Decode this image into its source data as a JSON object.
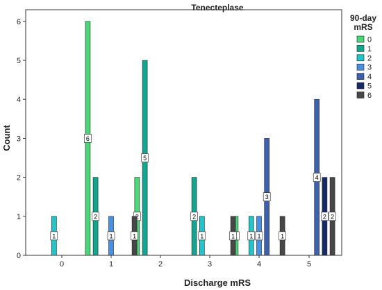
{
  "chart_data": {
    "type": "bar",
    "title": "Tenecteplase",
    "xlabel": "Discharge mRS",
    "ylabel": "Count",
    "categories": [
      "0",
      "1",
      "2",
      "3",
      "4",
      "5"
    ],
    "ylim": [
      0,
      6.3
    ],
    "yticks": [
      0,
      1,
      2,
      3,
      4,
      5,
      6
    ],
    "grid": false,
    "legend_title_lines": [
      "90-day",
      "mRS"
    ],
    "legend_position": "right",
    "series": [
      {
        "name": "0",
        "color": "#4BD67A",
        "values": [
          null,
          6,
          2,
          null,
          1,
          null
        ]
      },
      {
        "name": "1",
        "color": "#12A58F",
        "values": [
          null,
          2,
          5,
          2,
          null,
          null
        ]
      },
      {
        "name": "2",
        "color": "#22C5C9",
        "values": [
          1,
          null,
          null,
          1,
          1,
          null
        ]
      },
      {
        "name": "3",
        "color": "#4A90E2",
        "values": [
          null,
          1,
          null,
          null,
          1,
          null
        ]
      },
      {
        "name": "4",
        "color": "#3D5FAE",
        "values": [
          null,
          null,
          null,
          null,
          3,
          4
        ]
      },
      {
        "name": "5",
        "color": "#182A66",
        "values": [
          null,
          null,
          null,
          null,
          null,
          2
        ]
      },
      {
        "name": "6",
        "color": "#474747",
        "values": [
          null,
          1,
          null,
          1,
          1,
          2
        ]
      }
    ]
  }
}
